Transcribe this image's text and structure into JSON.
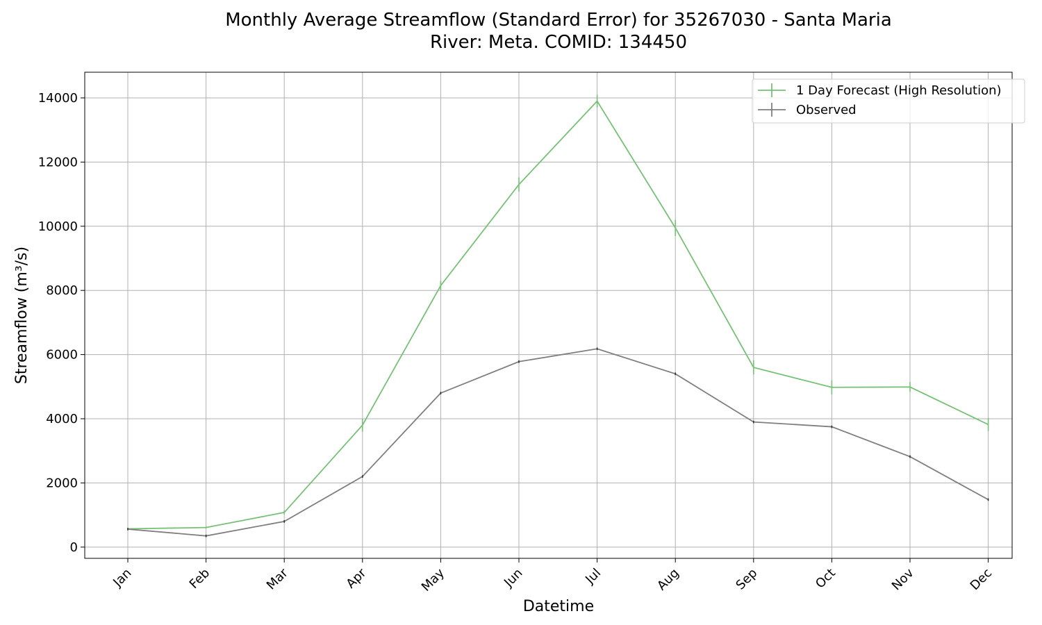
{
  "chart_data": {
    "type": "line",
    "title_line1": "Monthly Average Streamflow (Standard Error) for 35267030 - Santa Maria",
    "title_line2": "River: Meta. COMID: 134450",
    "xlabel": "Datetime",
    "ylabel": "Streamflow (m³/s)",
    "categories": [
      "Jan",
      "Feb",
      "Mar",
      "Apr",
      "May",
      "Jun",
      "Jul",
      "Aug",
      "Sep",
      "Oct",
      "Nov",
      "Dec"
    ],
    "ylim": [
      -350,
      14800
    ],
    "yticks": [
      0,
      2000,
      4000,
      6000,
      8000,
      10000,
      12000,
      14000
    ],
    "grid": true,
    "legend_position": "top-right",
    "series": [
      {
        "name": "1 Day Forecast (High Resolution)",
        "color": "#77c177",
        "values": [
          570,
          610,
          1080,
          3800,
          8150,
          11300,
          13900,
          9950,
          5600,
          4980,
          4990,
          3820
        ],
        "errors": [
          30,
          30,
          60,
          200,
          150,
          220,
          200,
          250,
          220,
          220,
          150,
          200
        ]
      },
      {
        "name": "Observed",
        "color": "#7f7f7f",
        "values": [
          560,
          350,
          800,
          2200,
          4800,
          5780,
          6180,
          5400,
          3900,
          3750,
          2820,
          1480
        ]
      }
    ]
  }
}
